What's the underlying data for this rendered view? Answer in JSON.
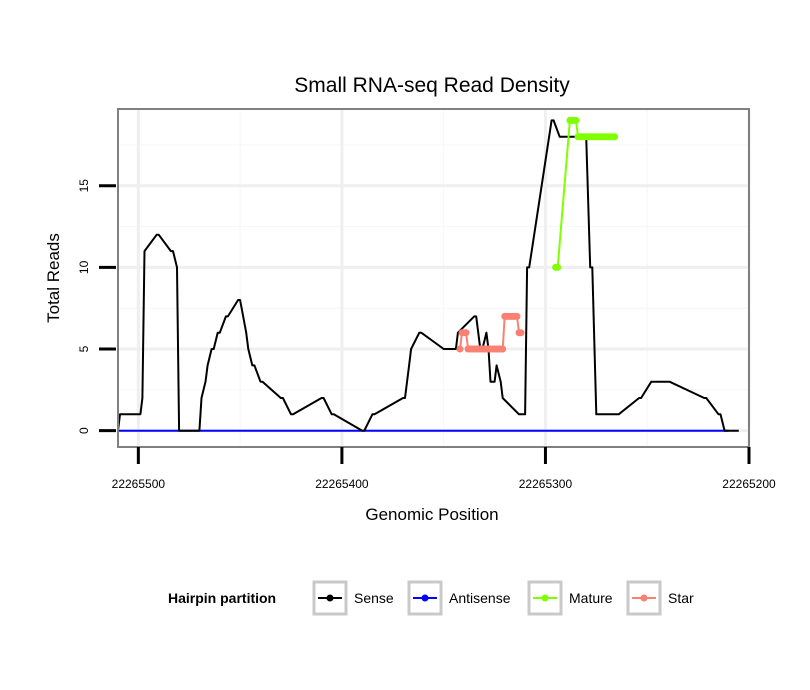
{
  "chart_data": {
    "type": "line",
    "title": "Small RNA-seq Read Density",
    "xlabel": "Genomic Position",
    "ylabel": "Total Reads",
    "xlim": [
      22265510,
      22265200
    ],
    "ylim": [
      -1,
      19.7
    ],
    "x_reversed": true,
    "x_ticks": [
      22265500,
      22265400,
      22265300,
      22265200
    ],
    "x_tick_labels": [
      "22265500",
      "22265400",
      "22265300",
      "22265200"
    ],
    "y_ticks": [
      0,
      5,
      10,
      15
    ],
    "y_tick_labels": [
      "0",
      "5",
      "10",
      "15"
    ],
    "grid": true,
    "legend": {
      "title": "Hairpin partition",
      "position": "bottom",
      "entries": [
        {
          "name": "Sense",
          "color": "#000000"
        },
        {
          "name": "Antisense",
          "color": "#0000ff"
        },
        {
          "name": "Mature",
          "color": "#7fff00"
        },
        {
          "name": "Star",
          "color": "#fa8072"
        }
      ]
    },
    "series": [
      {
        "name": "Sense",
        "color": "#000000",
        "x": [
          22265510,
          22265509,
          22265499,
          22265498,
          22265497,
          22265491,
          22265490,
          22265484,
          22265483,
          22265481,
          22265480,
          22265470,
          22265469,
          22265467,
          22265466,
          22265464,
          22265463,
          22265461,
          22265460,
          22265457,
          22265456,
          22265451,
          22265450,
          22265447,
          22265446,
          22265444,
          22265443,
          22265440,
          22265439,
          22265430,
          22265429,
          22265425,
          22265424,
          22265410,
          22265409,
          22265405,
          22265404,
          22265390,
          22265389,
          22265385,
          22265384,
          22265370,
          22265369,
          22265367,
          22265366,
          22265362,
          22265361,
          22265350,
          22265349,
          22265344,
          22265343,
          22265335,
          22265334,
          22265332,
          22265331,
          22265329,
          22265328,
          22265327,
          22265326,
          22265325,
          22265324,
          22265322,
          22265321,
          22265313,
          22265312,
          22265311,
          22265310,
          22265309,
          22265308,
          22265297,
          22265296,
          22265293,
          22265292,
          22265290,
          22265289,
          22265281,
          22265280,
          22265278,
          22265277,
          22265275,
          22265274,
          22265265,
          22265264,
          22265254,
          22265253,
          22265248,
          22265247,
          22265240,
          22265239,
          22265222,
          22265221,
          22265215,
          22265214,
          22265212,
          22265211,
          22265205
        ],
        "y": [
          0,
          1,
          1,
          2,
          11,
          12,
          12,
          11,
          11,
          10,
          0,
          0,
          2,
          3,
          4,
          5,
          5,
          6,
          6,
          7,
          7,
          8,
          8,
          6,
          5,
          4,
          4,
          3,
          3,
          2,
          2,
          1,
          1,
          2,
          2,
          1,
          1,
          0,
          0,
          1,
          1,
          2,
          2,
          4,
          5,
          6,
          6,
          5,
          5,
          5,
          6,
          7,
          7,
          5,
          5,
          6,
          5,
          3,
          3,
          3,
          4,
          3,
          2,
          1,
          1,
          1,
          1,
          10,
          10,
          19,
          19,
          18,
          18,
          18,
          18,
          18,
          18,
          10,
          10,
          1,
          1,
          1,
          1,
          2,
          2,
          3,
          3,
          3,
          3,
          2,
          2,
          1,
          1,
          0,
          0,
          0
        ]
      },
      {
        "name": "Antisense",
        "color": "#0000ff",
        "x": [
          22265510,
          22265210
        ],
        "y": [
          0,
          0
        ]
      },
      {
        "name": "Mature",
        "color": "#7fff00",
        "x": [
          22265295,
          22265294,
          22265288,
          22265287,
          22265286,
          22265285,
          22265284,
          22265283,
          22265282,
          22265281,
          22265280,
          22265279,
          22265278,
          22265277,
          22265276,
          22265275,
          22265274,
          22265273,
          22265272,
          22265271,
          22265270,
          22265269,
          22265268,
          22265267,
          22265266
        ],
        "y": [
          10,
          10,
          19,
          19,
          19,
          19,
          18,
          18,
          18,
          18,
          18,
          18,
          18,
          18,
          18,
          18,
          18,
          18,
          18,
          18,
          18,
          18,
          18,
          18,
          18
        ]
      },
      {
        "name": "Star",
        "color": "#fa8072",
        "x": [
          22265342,
          22265341,
          22265340,
          22265339,
          22265338,
          22265337,
          22265336,
          22265335,
          22265334,
          22265333,
          22265332,
          22265331,
          22265330,
          22265329,
          22265328,
          22265327,
          22265326,
          22265325,
          22265324,
          22265323,
          22265322,
          22265321,
          22265320,
          22265319,
          22265318,
          22265317,
          22265316,
          22265315,
          22265314,
          22265313,
          22265312
        ],
        "y": [
          5,
          6,
          6,
          6,
          5,
          5,
          5,
          5,
          5,
          5,
          5,
          5,
          5,
          5,
          5,
          5,
          5,
          5,
          5,
          5,
          5,
          5,
          7,
          7,
          7,
          7,
          7,
          7,
          7,
          6,
          6
        ]
      }
    ]
  }
}
